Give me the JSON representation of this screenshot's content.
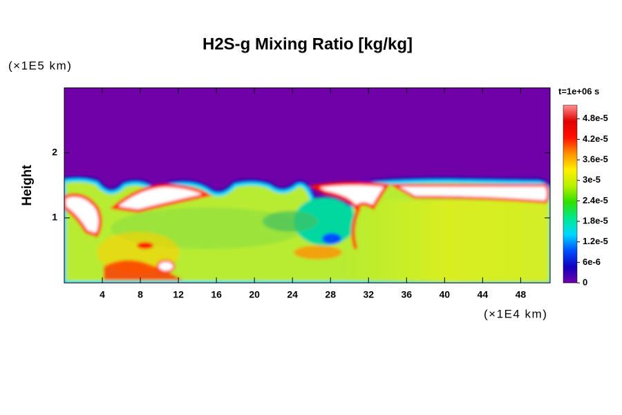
{
  "chart_data": {
    "type": "heatmap",
    "title": "H2S-g Mixing Ratio [kg/kg]",
    "y_label": "Height",
    "y_unit": "(×1E5 km)",
    "x_unit": "(×1E4 km)",
    "time_label": "t=1e+06 s",
    "xlim": [
      0,
      51.1
    ],
    "xticks": [
      4,
      8,
      12,
      16,
      20,
      24,
      28,
      32,
      36,
      40,
      44,
      48
    ],
    "ylim": [
      0,
      3
    ],
    "yticks": [
      1,
      2
    ],
    "clim": [
      0,
      5.2e-05
    ],
    "cticks": [
      0,
      {
        "value": 6e-06,
        "label": "6e-6"
      },
      {
        "value": 1.2e-05,
        "label": "1.2e-5"
      },
      {
        "value": 1.8e-05,
        "label": "1.8e-5"
      },
      {
        "value": 2.4e-05,
        "label": "2.4e-5"
      },
      {
        "value": 3e-05,
        "label": "3e-5"
      },
      {
        "value": 3.6e-05,
        "label": "3.6e-5"
      },
      {
        "value": 4.2e-05,
        "label": "4.2e-5"
      },
      {
        "value": 4.8e-05,
        "label": "4.8e-5"
      }
    ],
    "colormap": [
      "#7000a8",
      "#1000c0",
      "#0050ff",
      "#00d8ff",
      "#00e890",
      "#30e000",
      "#b8f000",
      "#fff000",
      "#ff9000",
      "#ff1000",
      "#e00000",
      "#ff9090"
    ]
  }
}
